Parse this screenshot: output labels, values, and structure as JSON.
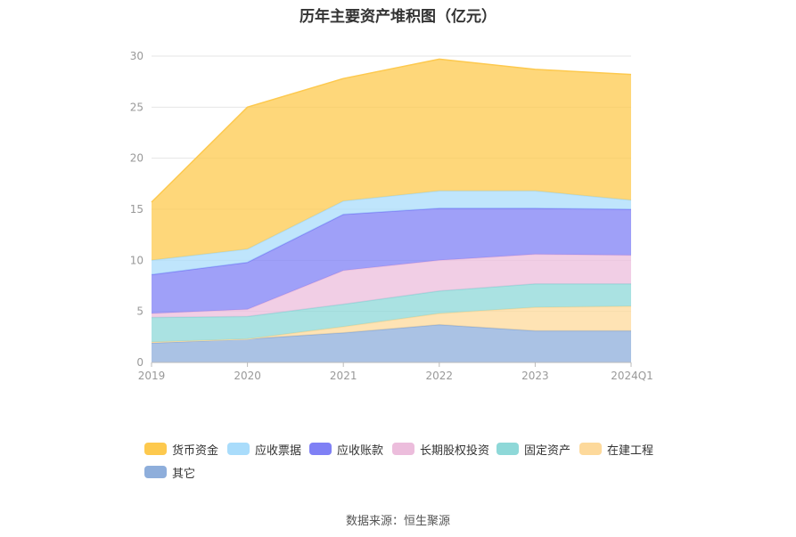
{
  "chart_title": "历年主要资产堆积图（亿元）",
  "source_text": "数据来源：恒生聚源",
  "chart_data": {
    "type": "area",
    "stacked": true,
    "title": "历年主要资产堆积图（亿元）",
    "x": [
      "2019",
      "2020",
      "2021",
      "2022",
      "2023",
      "2024Q1"
    ],
    "ylim": [
      0,
      30
    ],
    "yticks": [
      0,
      5,
      10,
      15,
      20,
      25,
      30
    ],
    "grid": true,
    "legend_position": "bottom",
    "series": [
      {
        "name": "其它",
        "color": "#8eaedb",
        "values": [
          1.9,
          2.3,
          2.9,
          3.7,
          3.1,
          3.1
        ]
      },
      {
        "name": "在建工程",
        "color": "#fdd99b",
        "values": [
          0.1,
          0.0,
          0.6,
          1.1,
          2.3,
          2.4
        ]
      },
      {
        "name": "固定资产",
        "color": "#8ed8d8",
        "values": [
          2.4,
          2.2,
          2.2,
          2.2,
          2.3,
          2.2
        ]
      },
      {
        "name": "长期股权投资",
        "color": "#ecbddc",
        "values": [
          0.4,
          0.7,
          3.3,
          3.0,
          2.9,
          2.8
        ]
      },
      {
        "name": "应收账款",
        "color": "#7f80f5",
        "values": [
          3.8,
          4.6,
          5.5,
          5.1,
          4.5,
          4.5
        ]
      },
      {
        "name": "应收票据",
        "color": "#a9dcfb",
        "values": [
          1.4,
          1.3,
          1.3,
          1.7,
          1.7,
          0.9
        ]
      },
      {
        "name": "货币资金",
        "color": "#fdc94e",
        "values": [
          5.7,
          13.9,
          12.0,
          12.9,
          11.9,
          12.3
        ]
      }
    ]
  }
}
